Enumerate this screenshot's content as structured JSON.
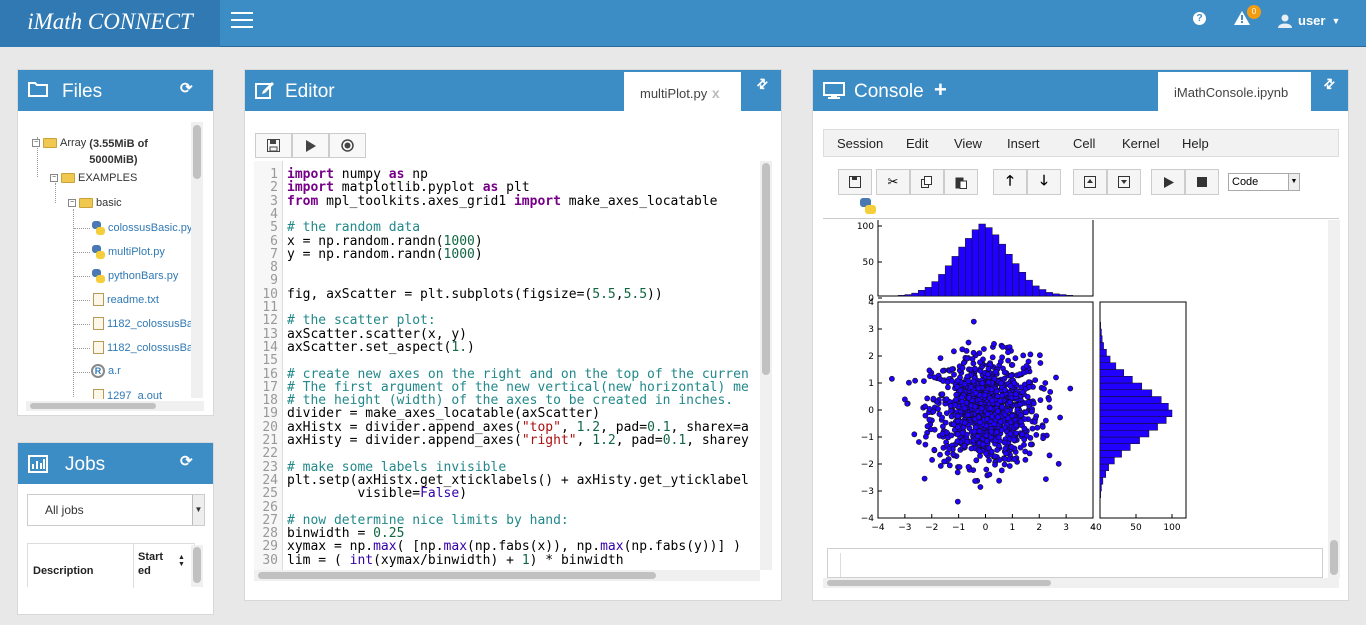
{
  "app": {
    "brand": "iMath CONNECT"
  },
  "topbar": {
    "help": "?",
    "alert_count": "0",
    "user_label": "user"
  },
  "files": {
    "title": "Files",
    "tree": [
      {
        "label": "Array",
        "suffix": "(3.55MiB of 5000MiB)",
        "kind": "root"
      },
      {
        "label": "EXAMPLES",
        "kind": "folder"
      },
      {
        "label": "basic",
        "kind": "folder"
      },
      {
        "label": "colossusBasic.py",
        "kind": "py"
      },
      {
        "label": "multiPlot.py",
        "kind": "py"
      },
      {
        "label": "pythonBars.py",
        "kind": "py"
      },
      {
        "label": "readme.txt",
        "kind": "txt"
      },
      {
        "label": "1182_colossusBa",
        "kind": "txt"
      },
      {
        "label": "1182_colossusBa",
        "kind": "txt"
      },
      {
        "label": "a.r",
        "kind": "r"
      },
      {
        "label": "1297_a.out",
        "kind": "txt"
      }
    ]
  },
  "jobs": {
    "title": "Jobs",
    "filter": "All jobs",
    "columns": [
      "Description",
      "Started"
    ]
  },
  "editor": {
    "title": "Editor",
    "tab": "multiPlot.py",
    "tab_close": "x",
    "lines": [
      "1",
      "2",
      "3",
      "4",
      "5",
      "6",
      "7",
      "8",
      "9",
      "10",
      "11",
      "12",
      "13",
      "14",
      "15",
      "16",
      "17",
      "18",
      "19",
      "20",
      "21",
      "22",
      "23",
      "24",
      "25",
      "26",
      "27",
      "28",
      "29",
      "30"
    ]
  },
  "console": {
    "title": "Console",
    "add": "+",
    "tab": "iMathConsole.ipynb",
    "menu": [
      "Session",
      "Edit",
      "View",
      "Insert",
      "Cell",
      "Kernel",
      "Help"
    ],
    "cell_type": "Code"
  },
  "chart_data": {
    "type": "scatter",
    "description_series": [
      {
        "name": "",
        "kind": "scatter"
      }
    ],
    "x_ticks": [
      "−4",
      "−3",
      "−2",
      "−1",
      "0",
      "1",
      "2",
      "3",
      "4"
    ],
    "y_ticks": [
      "4",
      "3",
      "2",
      "1",
      "0",
      "−1",
      "−2",
      "−3",
      "−4"
    ],
    "top_hist_ticks": [
      "100",
      "50",
      "0"
    ],
    "right_hist_ticks": [
      "0",
      "50",
      "100"
    ],
    "right_hist_first_tick": "40",
    "xlim": [
      -4,
      4
    ],
    "ylim": [
      -4,
      4
    ],
    "top_hist_ylim": [
      0,
      100
    ],
    "right_hist_xlim": [
      0,
      100
    ],
    "histogram_counts": [
      1,
      2,
      4,
      8,
      12,
      20,
      30,
      42,
      55,
      68,
      80,
      92,
      100,
      95,
      85,
      72,
      58,
      45,
      33,
      22,
      14,
      9,
      5,
      3,
      2,
      1
    ],
    "hist_bin_start": -3.25,
    "hist_binwidth": 0.25,
    "colors": {
      "bar": "#2200ff",
      "point": "#2200ff"
    }
  },
  "colors": {
    "header": "#3c8dc5",
    "brand": "#3079b3",
    "badge": "#f39c12"
  }
}
